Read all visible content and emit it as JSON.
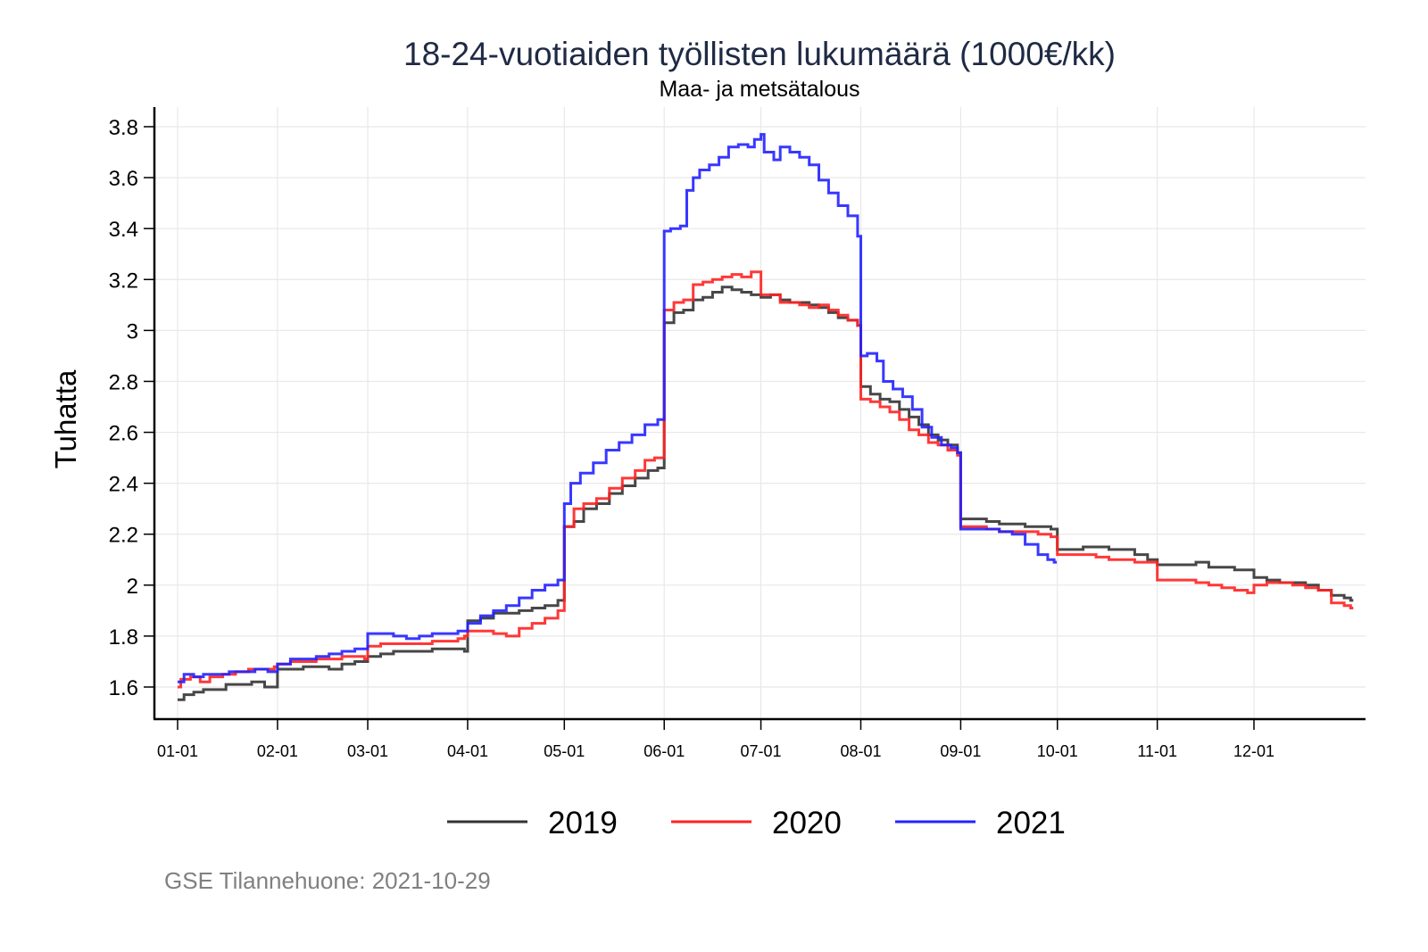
{
  "chart_data": {
    "type": "line",
    "step": true,
    "title": "18-24-vuotiaiden työllisten lukumäärä (1000€/kk)",
    "subtitle": "Maa- ja metsätalous",
    "xlabel": "",
    "ylabel": "Tuhatta",
    "x_unit": "day-of-year",
    "xlim": [
      1,
      365
    ],
    "ylim": [
      1.55,
      3.85
    ],
    "yticks": [
      1.6,
      1.8,
      2,
      2.2,
      2.4,
      2.6,
      2.8,
      3,
      3.2,
      3.4,
      3.6,
      3.8
    ],
    "ytick_labels": [
      "1.6",
      "1.8",
      "2",
      "2.2",
      "2.4",
      "2.6",
      "2.8",
      "3",
      "3.2",
      "3.4",
      "3.6",
      "3.8"
    ],
    "xticks": [
      1,
      32,
      60,
      91,
      121,
      152,
      182,
      213,
      244,
      274,
      305,
      335
    ],
    "xtick_labels": [
      "01-01",
      "02-01",
      "03-01",
      "04-01",
      "05-01",
      "06-01",
      "07-01",
      "08-01",
      "09-01",
      "10-01",
      "11-01",
      "12-01"
    ],
    "grid": true,
    "legend_position": "bottom",
    "series": [
      {
        "name": "2019",
        "color": "#333333",
        "points": [
          [
            1,
            1.55
          ],
          [
            3,
            1.57
          ],
          [
            6,
            1.58
          ],
          [
            9,
            1.59
          ],
          [
            12,
            1.59
          ],
          [
            16,
            1.61
          ],
          [
            20,
            1.61
          ],
          [
            24,
            1.62
          ],
          [
            28,
            1.6
          ],
          [
            31,
            1.6
          ],
          [
            32,
            1.67
          ],
          [
            36,
            1.67
          ],
          [
            40,
            1.68
          ],
          [
            44,
            1.68
          ],
          [
            48,
            1.67
          ],
          [
            52,
            1.69
          ],
          [
            56,
            1.7
          ],
          [
            59,
            1.7
          ],
          [
            60,
            1.72
          ],
          [
            64,
            1.73
          ],
          [
            68,
            1.74
          ],
          [
            72,
            1.74
          ],
          [
            76,
            1.74
          ],
          [
            80,
            1.75
          ],
          [
            84,
            1.75
          ],
          [
            88,
            1.75
          ],
          [
            90,
            1.74
          ],
          [
            91,
            1.86
          ],
          [
            95,
            1.87
          ],
          [
            99,
            1.89
          ],
          [
            103,
            1.89
          ],
          [
            107,
            1.9
          ],
          [
            111,
            1.91
          ],
          [
            115,
            1.92
          ],
          [
            119,
            1.94
          ],
          [
            121,
            2.23
          ],
          [
            124,
            2.25
          ],
          [
            127,
            2.3
          ],
          [
            131,
            2.32
          ],
          [
            135,
            2.36
          ],
          [
            139,
            2.39
          ],
          [
            143,
            2.42
          ],
          [
            147,
            2.45
          ],
          [
            150,
            2.46
          ],
          [
            152,
            3.03
          ],
          [
            155,
            3.07
          ],
          [
            158,
            3.08
          ],
          [
            161,
            3.12
          ],
          [
            164,
            3.13
          ],
          [
            167,
            3.15
          ],
          [
            170,
            3.17
          ],
          [
            173,
            3.16
          ],
          [
            176,
            3.15
          ],
          [
            179,
            3.14
          ],
          [
            182,
            3.13
          ],
          [
            185,
            3.14
          ],
          [
            188,
            3.12
          ],
          [
            191,
            3.11
          ],
          [
            194,
            3.11
          ],
          [
            197,
            3.1
          ],
          [
            200,
            3.09
          ],
          [
            203,
            3.07
          ],
          [
            206,
            3.05
          ],
          [
            209,
            3.04
          ],
          [
            212,
            3.02
          ],
          [
            213,
            2.78
          ],
          [
            216,
            2.75
          ],
          [
            219,
            2.73
          ],
          [
            222,
            2.72
          ],
          [
            225,
            2.69
          ],
          [
            228,
            2.66
          ],
          [
            231,
            2.63
          ],
          [
            234,
            2.59
          ],
          [
            237,
            2.57
          ],
          [
            240,
            2.55
          ],
          [
            243,
            2.52
          ],
          [
            244,
            2.26
          ],
          [
            248,
            2.26
          ],
          [
            252,
            2.25
          ],
          [
            256,
            2.24
          ],
          [
            260,
            2.24
          ],
          [
            264,
            2.23
          ],
          [
            268,
            2.23
          ],
          [
            272,
            2.22
          ],
          [
            274,
            2.14
          ],
          [
            278,
            2.14
          ],
          [
            282,
            2.15
          ],
          [
            286,
            2.15
          ],
          [
            290,
            2.14
          ],
          [
            294,
            2.14
          ],
          [
            298,
            2.12
          ],
          [
            302,
            2.1
          ],
          [
            305,
            2.08
          ],
          [
            309,
            2.08
          ],
          [
            313,
            2.08
          ],
          [
            317,
            2.09
          ],
          [
            321,
            2.07
          ],
          [
            325,
            2.07
          ],
          [
            329,
            2.06
          ],
          [
            333,
            2.06
          ],
          [
            335,
            2.03
          ],
          [
            339,
            2.02
          ],
          [
            343,
            2.01
          ],
          [
            347,
            2.01
          ],
          [
            351,
            2.0
          ],
          [
            355,
            1.98
          ],
          [
            359,
            1.96
          ],
          [
            363,
            1.95
          ],
          [
            365,
            1.94
          ]
        ]
      },
      {
        "name": "2020",
        "color": "#ff2222",
        "points": [
          [
            1,
            1.6
          ],
          [
            2,
            1.63
          ],
          [
            5,
            1.64
          ],
          [
            8,
            1.62
          ],
          [
            11,
            1.64
          ],
          [
            15,
            1.65
          ],
          [
            19,
            1.66
          ],
          [
            23,
            1.67
          ],
          [
            27,
            1.67
          ],
          [
            31,
            1.68
          ],
          [
            32,
            1.69
          ],
          [
            36,
            1.7
          ],
          [
            40,
            1.7
          ],
          [
            44,
            1.71
          ],
          [
            48,
            1.71
          ],
          [
            52,
            1.72
          ],
          [
            56,
            1.72
          ],
          [
            59,
            1.71
          ],
          [
            60,
            1.76
          ],
          [
            64,
            1.77
          ],
          [
            68,
            1.77
          ],
          [
            72,
            1.77
          ],
          [
            76,
            1.77
          ],
          [
            80,
            1.78
          ],
          [
            84,
            1.78
          ],
          [
            88,
            1.79
          ],
          [
            90,
            1.8
          ],
          [
            91,
            1.82
          ],
          [
            95,
            1.82
          ],
          [
            99,
            1.81
          ],
          [
            103,
            1.8
          ],
          [
            107,
            1.83
          ],
          [
            111,
            1.85
          ],
          [
            115,
            1.87
          ],
          [
            119,
            1.9
          ],
          [
            121,
            2.23
          ],
          [
            124,
            2.3
          ],
          [
            127,
            2.32
          ],
          [
            131,
            2.34
          ],
          [
            135,
            2.38
          ],
          [
            139,
            2.42
          ],
          [
            143,
            2.45
          ],
          [
            146,
            2.49
          ],
          [
            149,
            2.5
          ],
          [
            152,
            3.08
          ],
          [
            155,
            3.11
          ],
          [
            158,
            3.12
          ],
          [
            161,
            3.18
          ],
          [
            164,
            3.19
          ],
          [
            167,
            3.2
          ],
          [
            170,
            3.21
          ],
          [
            173,
            3.22
          ],
          [
            176,
            3.21
          ],
          [
            179,
            3.23
          ],
          [
            182,
            3.14
          ],
          [
            185,
            3.14
          ],
          [
            188,
            3.11
          ],
          [
            191,
            3.11
          ],
          [
            194,
            3.1
          ],
          [
            197,
            3.09
          ],
          [
            200,
            3.1
          ],
          [
            203,
            3.08
          ],
          [
            206,
            3.06
          ],
          [
            209,
            3.04
          ],
          [
            212,
            3.02
          ],
          [
            213,
            2.73
          ],
          [
            216,
            2.72
          ],
          [
            219,
            2.7
          ],
          [
            222,
            2.68
          ],
          [
            225,
            2.65
          ],
          [
            228,
            2.61
          ],
          [
            231,
            2.59
          ],
          [
            234,
            2.56
          ],
          [
            237,
            2.55
          ],
          [
            240,
            2.53
          ],
          [
            243,
            2.51
          ],
          [
            244,
            2.23
          ],
          [
            248,
            2.23
          ],
          [
            252,
            2.22
          ],
          [
            256,
            2.21
          ],
          [
            260,
            2.21
          ],
          [
            264,
            2.21
          ],
          [
            268,
            2.2
          ],
          [
            272,
            2.19
          ],
          [
            274,
            2.12
          ],
          [
            278,
            2.12
          ],
          [
            282,
            2.12
          ],
          [
            286,
            2.11
          ],
          [
            290,
            2.1
          ],
          [
            294,
            2.1
          ],
          [
            298,
            2.09
          ],
          [
            302,
            2.09
          ],
          [
            305,
            2.02
          ],
          [
            309,
            2.02
          ],
          [
            313,
            2.02
          ],
          [
            317,
            2.01
          ],
          [
            321,
            2.0
          ],
          [
            325,
            1.99
          ],
          [
            329,
            1.98
          ],
          [
            333,
            1.97
          ],
          [
            335,
            2.0
          ],
          [
            339,
            2.01
          ],
          [
            343,
            2.01
          ],
          [
            347,
            2.0
          ],
          [
            351,
            1.99
          ],
          [
            355,
            1.98
          ],
          [
            359,
            1.93
          ],
          [
            363,
            1.92
          ],
          [
            365,
            1.91
          ]
        ]
      },
      {
        "name": "2021",
        "color": "#2222ff",
        "points": [
          [
            1,
            1.62
          ],
          [
            3,
            1.65
          ],
          [
            6,
            1.64
          ],
          [
            9,
            1.65
          ],
          [
            13,
            1.65
          ],
          [
            17,
            1.66
          ],
          [
            21,
            1.66
          ],
          [
            25,
            1.67
          ],
          [
            29,
            1.66
          ],
          [
            31,
            1.66
          ],
          [
            32,
            1.69
          ],
          [
            36,
            1.71
          ],
          [
            40,
            1.71
          ],
          [
            44,
            1.72
          ],
          [
            48,
            1.73
          ],
          [
            52,
            1.74
          ],
          [
            56,
            1.75
          ],
          [
            59,
            1.75
          ],
          [
            60,
            1.81
          ],
          [
            64,
            1.81
          ],
          [
            68,
            1.8
          ],
          [
            72,
            1.79
          ],
          [
            76,
            1.8
          ],
          [
            80,
            1.81
          ],
          [
            84,
            1.81
          ],
          [
            88,
            1.82
          ],
          [
            90,
            1.82
          ],
          [
            91,
            1.85
          ],
          [
            95,
            1.88
          ],
          [
            99,
            1.9
          ],
          [
            103,
            1.92
          ],
          [
            107,
            1.95
          ],
          [
            111,
            1.98
          ],
          [
            115,
            2.0
          ],
          [
            119,
            2.02
          ],
          [
            121,
            2.32
          ],
          [
            123,
            2.4
          ],
          [
            126,
            2.44
          ],
          [
            130,
            2.48
          ],
          [
            134,
            2.53
          ],
          [
            138,
            2.56
          ],
          [
            142,
            2.59
          ],
          [
            146,
            2.63
          ],
          [
            150,
            2.65
          ],
          [
            152,
            3.39
          ],
          [
            154,
            3.4
          ],
          [
            157,
            3.41
          ],
          [
            159,
            3.55
          ],
          [
            161,
            3.6
          ],
          [
            163,
            3.63
          ],
          [
            166,
            3.65
          ],
          [
            169,
            3.68
          ],
          [
            172,
            3.72
          ],
          [
            175,
            3.73
          ],
          [
            178,
            3.72
          ],
          [
            180,
            3.75
          ],
          [
            182,
            3.77
          ],
          [
            183,
            3.7
          ],
          [
            186,
            3.67
          ],
          [
            188,
            3.72
          ],
          [
            191,
            3.7
          ],
          [
            194,
            3.68
          ],
          [
            197,
            3.65
          ],
          [
            200,
            3.59
          ],
          [
            203,
            3.54
          ],
          [
            206,
            3.49
          ],
          [
            209,
            3.45
          ],
          [
            212,
            3.37
          ],
          [
            213,
            2.9
          ],
          [
            215,
            2.91
          ],
          [
            218,
            2.88
          ],
          [
            220,
            2.8
          ],
          [
            223,
            2.77
          ],
          [
            226,
            2.74
          ],
          [
            229,
            2.69
          ],
          [
            232,
            2.62
          ],
          [
            235,
            2.58
          ],
          [
            238,
            2.55
          ],
          [
            241,
            2.54
          ],
          [
            243,
            2.52
          ],
          [
            244,
            2.22
          ],
          [
            248,
            2.22
          ],
          [
            252,
            2.22
          ],
          [
            256,
            2.21
          ],
          [
            260,
            2.2
          ],
          [
            264,
            2.16
          ],
          [
            268,
            2.12
          ],
          [
            271,
            2.1
          ],
          [
            273,
            2.09
          ]
        ]
      }
    ]
  },
  "legend": {
    "items": [
      {
        "label": "2019",
        "color": "#333333"
      },
      {
        "label": "2020",
        "color": "#ff2222"
      },
      {
        "label": "2021",
        "color": "#2222ff"
      }
    ]
  },
  "caption": "GSE Tilannehuone: 2021-10-29"
}
